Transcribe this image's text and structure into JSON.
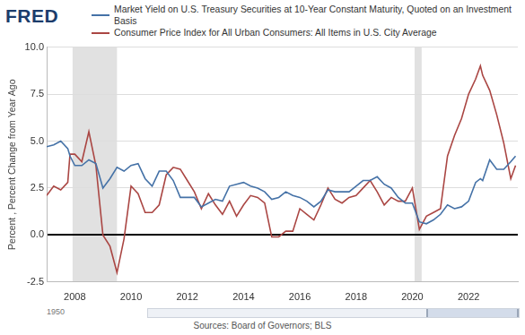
{
  "chart_data": {
    "type": "line",
    "logo": "FRED",
    "legend": "top",
    "grid": true,
    "y_label": "Percent , Percent Change from Year Ago",
    "source": "Sources: Board of Governors; BLS",
    "navigator_label": "1950",
    "x": [
      2007,
      2007.25,
      2007.5,
      2007.75,
      2007.83,
      2008,
      2008.25,
      2008.5,
      2008.75,
      2009,
      2009.25,
      2009.5,
      2009.75,
      2010,
      2010.25,
      2010.5,
      2010.75,
      2011,
      2011.25,
      2011.5,
      2011.75,
      2012,
      2012.25,
      2012.5,
      2012.75,
      2013,
      2013.25,
      2013.5,
      2013.75,
      2014,
      2014.25,
      2014.5,
      2014.75,
      2015,
      2015.25,
      2015.5,
      2015.75,
      2016,
      2016.25,
      2016.5,
      2016.75,
      2017,
      2017.25,
      2017.5,
      2017.75,
      2018,
      2018.25,
      2018.5,
      2018.75,
      2019,
      2019.25,
      2019.5,
      2019.75,
      2020,
      2020.25,
      2020.5,
      2020.75,
      2021,
      2021.25,
      2021.5,
      2021.75,
      2022,
      2022.25,
      2022.42,
      2022.5,
      2022.75,
      2023,
      2023.25,
      2023.5,
      2023.67
    ],
    "series": [
      {
        "name": "Market Yield on U.S. Treasury Securities at 10-Year Constant Maturity, Quoted on an Investment Basis",
        "color": "#4572a7",
        "values": [
          4.7,
          4.8,
          5.0,
          4.6,
          4.2,
          3.7,
          3.7,
          4.0,
          3.8,
          2.5,
          3.0,
          3.6,
          3.4,
          3.7,
          3.8,
          3.0,
          2.6,
          3.4,
          3.4,
          2.9,
          2.0,
          2.0,
          2.0,
          1.5,
          1.7,
          1.9,
          1.8,
          2.6,
          2.7,
          2.8,
          2.6,
          2.5,
          2.3,
          1.9,
          2.0,
          2.3,
          2.1,
          2.0,
          1.8,
          1.5,
          1.8,
          2.4,
          2.3,
          2.3,
          2.3,
          2.6,
          2.9,
          2.9,
          3.1,
          2.7,
          2.5,
          2.0,
          1.7,
          1.7,
          0.7,
          0.6,
          0.8,
          1.1,
          1.6,
          1.4,
          1.5,
          1.8,
          2.8,
          3.0,
          2.9,
          4.0,
          3.5,
          3.5,
          3.9,
          4.2
        ]
      },
      {
        "name": "Consumer Price Index for All Urban Consumers: All Items in U.S. City Average",
        "color": "#aa4643",
        "values": [
          2.1,
          2.6,
          2.4,
          2.8,
          4.3,
          4.3,
          3.9,
          5.5,
          3.7,
          0.0,
          -0.6,
          -2.0,
          -0.2,
          2.6,
          2.2,
          1.2,
          1.2,
          1.6,
          3.2,
          3.6,
          3.5,
          2.9,
          2.3,
          1.4,
          2.2,
          1.6,
          1.1,
          1.8,
          1.0,
          1.6,
          2.1,
          2.0,
          1.7,
          -0.1,
          -0.1,
          0.2,
          0.2,
          1.4,
          1.1,
          0.8,
          1.6,
          2.5,
          1.9,
          1.7,
          2.0,
          2.1,
          2.5,
          2.9,
          2.3,
          1.6,
          2.0,
          1.8,
          1.8,
          2.5,
          0.3,
          1.0,
          1.2,
          1.4,
          4.2,
          5.3,
          6.2,
          7.5,
          8.3,
          9.0,
          8.5,
          7.7,
          6.4,
          4.9,
          3.0,
          3.7
        ]
      }
    ],
    "xlim": [
      2007,
      2023.75
    ],
    "xticks": [
      2008,
      2010,
      2012,
      2014,
      2016,
      2018,
      2020,
      2022
    ],
    "ylim": [
      -2.5,
      10
    ],
    "yticks": [
      -2.5,
      {
        "value": 0,
        "label": "0.0"
      },
      2.5,
      {
        "value": 5,
        "label": "5.0"
      },
      7.5,
      {
        "value": 10,
        "label": "10.0"
      }
    ],
    "recessions": [
      [
        2007.92,
        2009.5
      ],
      [
        2020.08,
        2020.33
      ]
    ]
  }
}
